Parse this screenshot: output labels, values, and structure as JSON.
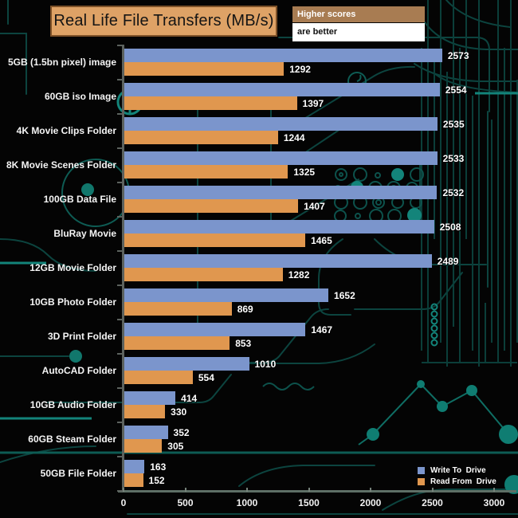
{
  "title": "Real Life File Transfers (MB/s)",
  "note": {
    "line1": "Higher scores",
    "line2": "are better"
  },
  "colors": {
    "write": "#7b95cc",
    "read": "#e0974f",
    "title_bg": "#dea266",
    "note_bg": "#a87c52",
    "background": "#040404",
    "circuit": "#0c443f"
  },
  "legend": {
    "items": [
      {
        "label": "Write To  Drive",
        "color": "#7b95cc"
      },
      {
        "label": "Read From  Drive",
        "color": "#e0974f"
      }
    ]
  },
  "chart_data": {
    "type": "bar",
    "orientation": "horizontal",
    "title": "Real Life File Transfers (MB/s)",
    "xlabel": "",
    "ylabel": "",
    "xlim": [
      0,
      3000
    ],
    "xticks": [
      0,
      500,
      1000,
      1500,
      2000,
      2500,
      3000
    ],
    "grid": false,
    "legend_position": "bottom-right",
    "categories": [
      "5GB (1.5bn pixel) image",
      "60GB iso Image",
      "4K Movie Clips Folder",
      "8K Movie Scenes Folder",
      "100GB Data File",
      "BluRay Movie",
      "12GB Movie Folder",
      "10GB Photo Folder",
      "3D Print Folder",
      "AutoCAD Folder",
      "10GB Audio Folder",
      "60GB Steam Folder",
      "50GB File Folder"
    ],
    "series": [
      {
        "name": "Write To  Drive",
        "color": "#7b95cc",
        "values": [
          2573,
          2554,
          2535,
          2533,
          2532,
          2508,
          2489,
          1652,
          1467,
          1010,
          414,
          352,
          163
        ]
      },
      {
        "name": "Read From  Drive",
        "color": "#e0974f",
        "values": [
          1292,
          1397,
          1244,
          1325,
          1407,
          1465,
          1282,
          869,
          853,
          554,
          330,
          305,
          152
        ]
      }
    ]
  }
}
